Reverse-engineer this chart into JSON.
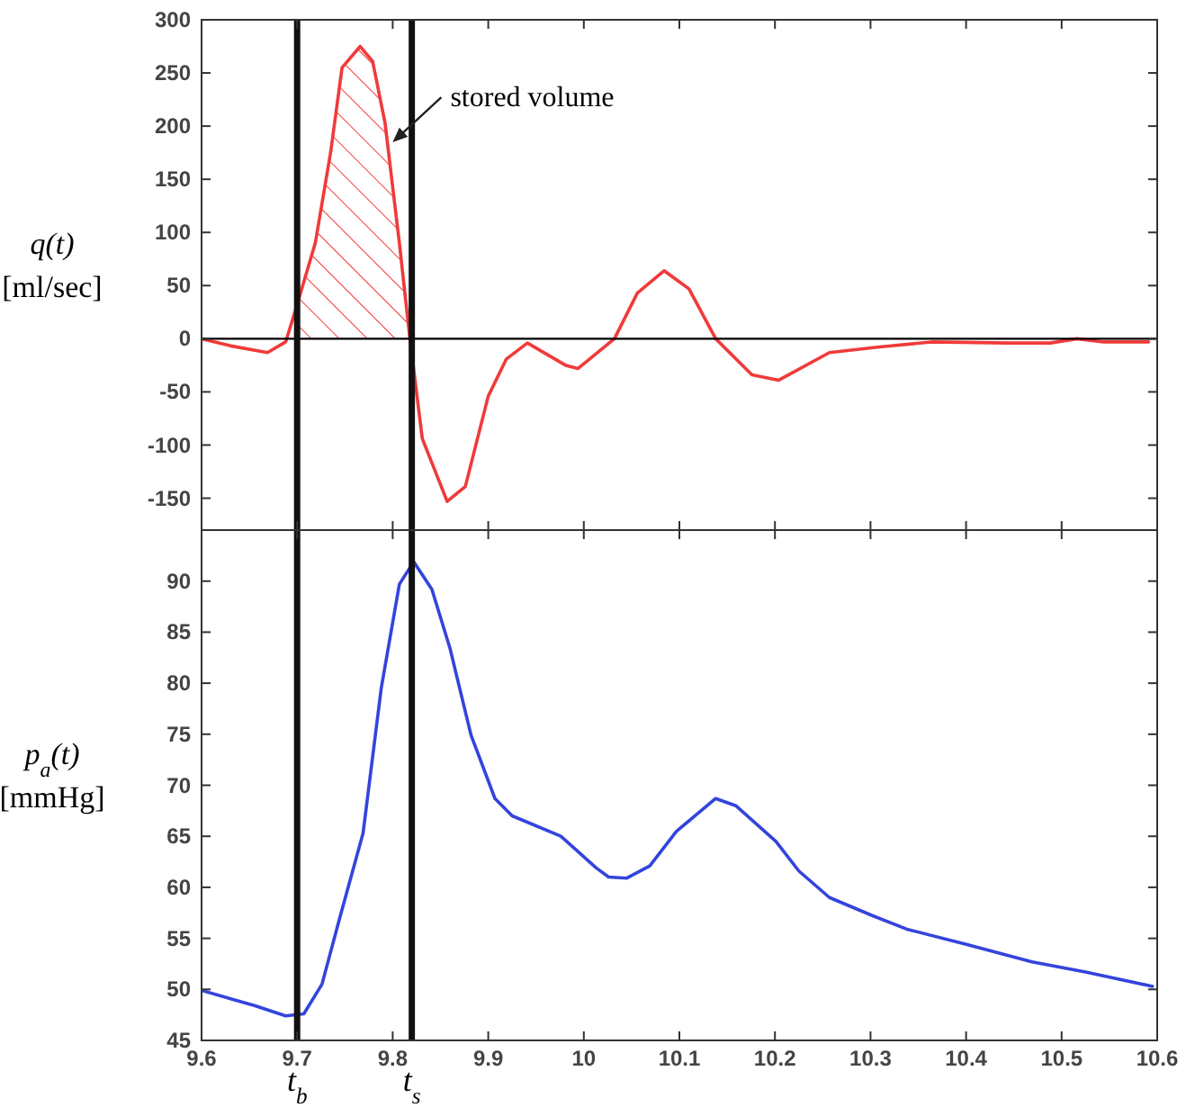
{
  "chart_data": [
    {
      "type": "line",
      "ylabel": "q(t) [ml/sec]",
      "xlim": [
        9.6,
        10.6
      ],
      "xticks": [
        9.6,
        9.7,
        9.8,
        9.9,
        10,
        10.1,
        10.2,
        10.3,
        10.4,
        10.5,
        10.6
      ],
      "ylim": [
        -180,
        300
      ],
      "yticks": [
        -150,
        -100,
        -50,
        0,
        50,
        100,
        150,
        200,
        250,
        300
      ],
      "tick_labels": "y",
      "series": [
        {
          "color": "#f03a3a",
          "x": [
            9.6,
            9.632,
            9.669,
            9.688,
            9.7,
            9.719,
            9.735,
            9.747,
            9.766,
            9.779,
            9.792,
            9.807,
            9.818,
            9.831,
            9.857,
            9.876,
            9.9,
            9.919,
            9.941,
            9.981,
            9.994,
            10.032,
            10.056,
            10.084,
            10.11,
            10.138,
            10.176,
            10.204,
            10.257,
            10.307,
            10.364,
            10.444,
            10.488,
            10.516,
            10.544,
            10.591
          ],
          "values": [
            0,
            -7,
            -13,
            -3,
            32,
            90,
            175,
            255,
            275,
            261,
            203,
            90,
            0,
            -94,
            -153,
            -139,
            -54,
            -19,
            -4,
            -25,
            -28,
            0,
            43,
            64,
            47,
            0,
            -34,
            -39,
            -13,
            -8,
            -3,
            -4,
            -4,
            0,
            -3,
            -3
          ]
        },
        {
          "type": "area",
          "color": "#f03a3a",
          "x": [
            9.7,
            9.719,
            9.735,
            9.747,
            9.766,
            9.779,
            9.792,
            9.807,
            9.818
          ],
          "values": [
            32,
            90,
            175,
            255,
            275,
            261,
            203,
            90,
            0
          ]
        }
      ],
      "ref_lines": [
        {
          "axis": "y",
          "value": 0,
          "color": "#000000"
        },
        {
          "axis": "x",
          "value": 9.7,
          "color": "#111111"
        },
        {
          "axis": "x",
          "value": 9.82,
          "color": "#111111"
        }
      ],
      "annotations": [
        "stored volume"
      ]
    },
    {
      "type": "line",
      "ylabel": "p$_{a}$(t) [mmHg]",
      "xlim": [
        9.6,
        10.6
      ],
      "xticks": [
        9.6,
        9.7,
        9.8,
        9.9,
        10,
        10.1,
        10.2,
        10.3,
        10.4,
        10.5,
        10.6
      ],
      "ylim": [
        45,
        95
      ],
      "yticks": [
        45,
        50,
        55,
        60,
        65,
        70,
        75,
        80,
        85,
        90
      ],
      "series": [
        {
          "color": "#3344dd",
          "x": [
            9.6,
            9.656,
            9.688,
            9.707,
            9.726,
            9.744,
            9.769,
            9.788,
            9.807,
            9.822,
            9.841,
            9.86,
            9.882,
            9.907,
            9.925,
            9.976,
            10.013,
            10.026,
            10.045,
            10.069,
            10.097,
            10.138,
            10.159,
            10.201,
            10.225,
            10.257,
            10.3,
            10.338,
            10.401,
            10.469,
            10.525,
            10.595
          ],
          "values": [
            49.9,
            48.4,
            47.4,
            47.6,
            50.5,
            56.8,
            65.3,
            79.5,
            89.7,
            91.9,
            89.2,
            83.4,
            74.9,
            68.7,
            67,
            65,
            61.9,
            61,
            60.9,
            62.1,
            65.5,
            68.7,
            68,
            64.5,
            61.6,
            59,
            57.3,
            55.9,
            54.4,
            52.7,
            51.7,
            50.3
          ]
        }
      ],
      "ref_lines": [
        {
          "axis": "x",
          "value": 9.7,
          "label": "t$_{b}$",
          "color": "#111111"
        },
        {
          "axis": "x",
          "value": 9.82,
          "label": "t$_{s}$",
          "color": "#111111"
        }
      ]
    }
  ]
}
